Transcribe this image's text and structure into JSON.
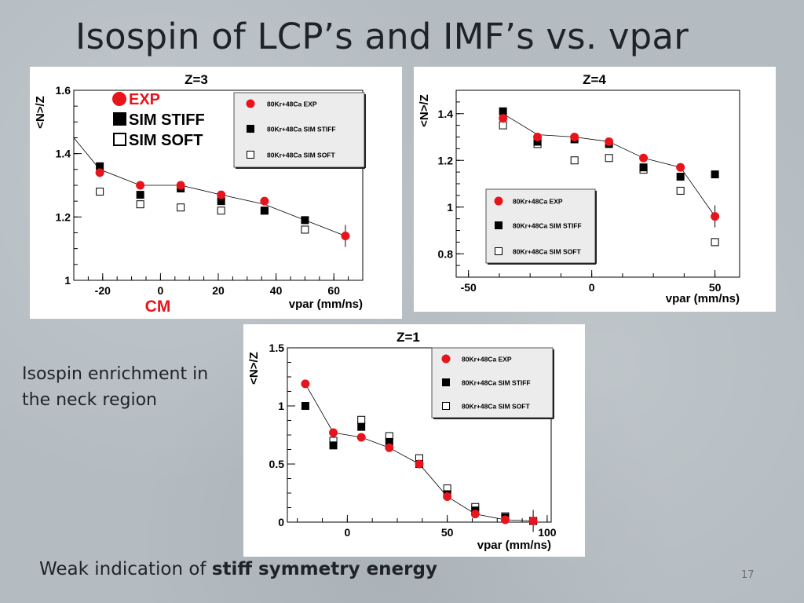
{
  "slide": {
    "title": "Isospin of LCP’s and IMF’s vs. vpar",
    "note": "Isospin enrichment in the neck region",
    "bottom_prefix": "Weak indication of ",
    "bottom_bold": "stiff symmetry energy",
    "page_number": "17"
  },
  "colors": {
    "exp": "#e8141c",
    "sim": "#000000",
    "background": "#b4bcc1"
  },
  "chart_data": [
    {
      "id": "z3",
      "type": "scatter",
      "title": "Z=3",
      "xlabel": "vpar (mm/ns)",
      "ylabel": "<N>/Z",
      "xlim": [
        -30,
        70
      ],
      "ylim": [
        1.0,
        1.6
      ],
      "xticks": [
        -20,
        0,
        20,
        40,
        60
      ],
      "yticks": [
        1,
        1.2,
        1.4,
        1.6
      ],
      "yticklabels": [
        "1",
        "1.2",
        "1.4",
        "1.6"
      ],
      "legend_position": "top-right",
      "big_legend": [
        "EXP",
        "SIM STIFF",
        "SIM SOFT"
      ],
      "cm_label": "CM",
      "series": [
        {
          "name": "80Kr+48Ca EXP",
          "marker": "circle",
          "x": [
            -21,
            -7,
            7,
            21,
            36,
            64
          ],
          "y": [
            1.34,
            1.3,
            1.3,
            1.27,
            1.25,
            1.14
          ]
        },
        {
          "name": "80Kr+48Ca SIM STIFF",
          "marker": "square",
          "x": [
            -21,
            -7,
            7,
            21,
            36,
            50
          ],
          "y": [
            1.36,
            1.27,
            1.29,
            1.25,
            1.22,
            1.19
          ]
        },
        {
          "name": "80Kr+48Ca SIM SOFT",
          "marker": "open-square",
          "x": [
            -21,
            -7,
            7,
            21,
            36,
            50
          ],
          "y": [
            1.28,
            1.24,
            1.23,
            1.22,
            1.22,
            1.16
          ]
        }
      ],
      "curve": {
        "x": [
          -30,
          -21,
          -7,
          7,
          21,
          36,
          50,
          64
        ],
        "y": [
          1.45,
          1.35,
          1.3,
          1.3,
          1.27,
          1.24,
          1.19,
          1.14
        ]
      }
    },
    {
      "id": "z4",
      "type": "scatter",
      "title": "Z=4",
      "xlabel": "vpar (mm/ns)",
      "ylabel": "<N>/Z",
      "xlim": [
        -55,
        60
      ],
      "ylim": [
        0.7,
        1.5
      ],
      "xticks": [
        -50,
        0,
        50
      ],
      "yticks": [
        0.8,
        1.0,
        1.2,
        1.4
      ],
      "yticklabels": [
        "0.8",
        "1",
        "1.2",
        "1.4"
      ],
      "legend_position": "bottom-right",
      "series": [
        {
          "name": "80Kr+48Ca EXP",
          "marker": "circle",
          "x": [
            -36,
            -22,
            -7,
            7,
            21,
            36,
            50
          ],
          "y": [
            1.38,
            1.3,
            1.3,
            1.28,
            1.21,
            1.17,
            0.96
          ]
        },
        {
          "name": "80Kr+48Ca SIM STIFF",
          "marker": "square",
          "x": [
            -36,
            -22,
            -7,
            7,
            21,
            36,
            50
          ],
          "y": [
            1.41,
            1.28,
            1.29,
            1.27,
            1.17,
            1.13,
            1.14
          ]
        },
        {
          "name": "80Kr+48Ca SIM SOFT",
          "marker": "open-square",
          "x": [
            -36,
            -22,
            -7,
            7,
            21,
            36,
            50
          ],
          "y": [
            1.35,
            1.27,
            1.2,
            1.21,
            1.16,
            1.07,
            0.85
          ]
        }
      ],
      "curve": {
        "x": [
          -36,
          -22,
          -7,
          7,
          21,
          36,
          50
        ],
        "y": [
          1.4,
          1.31,
          1.3,
          1.28,
          1.21,
          1.17,
          0.96
        ]
      }
    },
    {
      "id": "z1",
      "type": "scatter",
      "title": "Z=1",
      "xlabel": "vpar (mm/ns)",
      "ylabel": "<N>/Z",
      "xlim": [
        -30,
        102
      ],
      "ylim": [
        0,
        1.5
      ],
      "xticks": [
        0,
        50,
        100
      ],
      "yticks": [
        0,
        0.5,
        1.0,
        1.5
      ],
      "yticklabels": [
        "0",
        "0.5",
        "1",
        "1.5"
      ],
      "legend_position": "top-right",
      "series": [
        {
          "name": "80Kr+48Ca EXP",
          "marker": "circle",
          "x": [
            -21,
            -7,
            7,
            21,
            36,
            50,
            64,
            79,
            93
          ],
          "y": [
            1.19,
            0.77,
            0.73,
            0.64,
            0.5,
            0.22,
            0.07,
            0.02,
            0.01
          ]
        },
        {
          "name": "80Kr+48Ca SIM STIFF",
          "marker": "square",
          "x": [
            -21,
            -7,
            7,
            21,
            36,
            50,
            64,
            79,
            93
          ],
          "y": [
            1.0,
            0.66,
            0.82,
            0.69,
            0.5,
            0.24,
            0.1,
            0.04,
            0.01
          ]
        },
        {
          "name": "80Kr+48Ca SIM SOFT",
          "marker": "open-square",
          "x": [
            -7,
            7,
            21,
            36,
            50,
            64,
            79,
            93
          ],
          "y": [
            0.7,
            0.88,
            0.74,
            0.55,
            0.29,
            0.13,
            0.05,
            0.01
          ]
        }
      ],
      "curve": {
        "x": [
          -21,
          -7,
          7,
          21,
          36,
          50,
          64,
          79,
          93
        ],
        "y": [
          1.19,
          0.77,
          0.73,
          0.64,
          0.5,
          0.22,
          0.07,
          0.02,
          0.01
        ]
      }
    }
  ]
}
